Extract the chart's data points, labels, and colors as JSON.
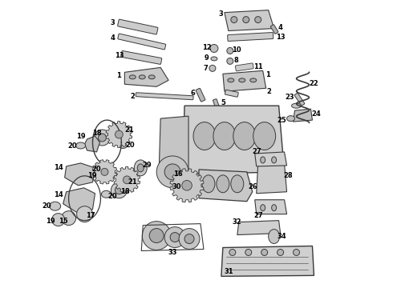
{
  "background_color": "#ffffff",
  "figsize": [
    4.9,
    3.6
  ],
  "dpi": 100,
  "outline_color": "#3a3a3a",
  "fill_color": "#d8d8d8",
  "dark_fill": "#b0b0b0",
  "label_fontsize": 6.0,
  "label_color": "#000000"
}
